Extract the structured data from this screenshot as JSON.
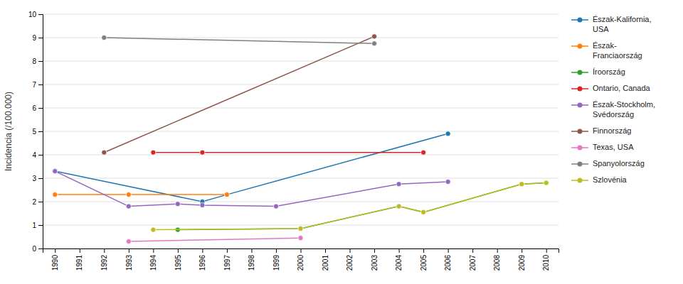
{
  "chart_data": {
    "type": "line",
    "ylabel": "Incidencia (/100.000)",
    "xlim": [
      1989.5,
      2010.5
    ],
    "xticks": [
      1990,
      1991,
      1992,
      1993,
      1994,
      1995,
      1996,
      1997,
      1998,
      1999,
      2000,
      2001,
      2002,
      2003,
      2004,
      2005,
      2006,
      2007,
      2008,
      2009,
      2010
    ],
    "ylim": [
      0,
      10
    ],
    "yticks": [
      0,
      1,
      2,
      3,
      4,
      5,
      6,
      7,
      8,
      9,
      10
    ],
    "grid": "y",
    "legend": "right",
    "series": [
      {
        "name": "Észak-Kalifornia,\nUSA",
        "marker": "circle",
        "x": [
          1990,
          1996,
          1997,
          2006
        ],
        "values": [
          3.3,
          2.0,
          2.3,
          4.9
        ]
      },
      {
        "name": "Észak-\nFranciaország",
        "marker": "circle",
        "x": [
          1990,
          1993,
          1997
        ],
        "values": [
          2.3,
          2.3,
          2.3
        ]
      },
      {
        "name": "Íroország",
        "marker": "circle",
        "x": [
          1995,
          2000,
          2004,
          2005,
          2009,
          2010
        ],
        "values": [
          0.8,
          0.85,
          1.8,
          1.55,
          2.75,
          2.8
        ]
      },
      {
        "name": "Ontario, Canada",
        "marker": "circle",
        "x": [
          1994,
          1996,
          2005
        ],
        "values": [
          4.1,
          4.1,
          4.1
        ]
      },
      {
        "name": "Észak-Stockholm,\nSvédország",
        "marker": "circle",
        "x": [
          1990,
          1993,
          1995,
          1996,
          1999,
          2004,
          2006
        ],
        "values": [
          3.3,
          1.8,
          1.9,
          1.85,
          1.8,
          2.75,
          2.85
        ]
      },
      {
        "name": "Finnország",
        "marker": "circle",
        "x": [
          1992,
          2003
        ],
        "values": [
          4.1,
          9.05
        ]
      },
      {
        "name": "Texas, USA",
        "marker": "circle",
        "x": [
          1993,
          2000
        ],
        "values": [
          0.3,
          0.45
        ]
      },
      {
        "name": "Spanyolország",
        "marker": "circle",
        "x": [
          1992,
          2003
        ],
        "values": [
          9.0,
          8.75
        ]
      },
      {
        "name": "Szlovénia",
        "marker": "circle",
        "x": [
          1994,
          2000,
          2004,
          2005,
          2009,
          2010
        ],
        "values": [
          0.8,
          0.85,
          1.8,
          1.55,
          2.75,
          2.8
        ]
      }
    ]
  }
}
